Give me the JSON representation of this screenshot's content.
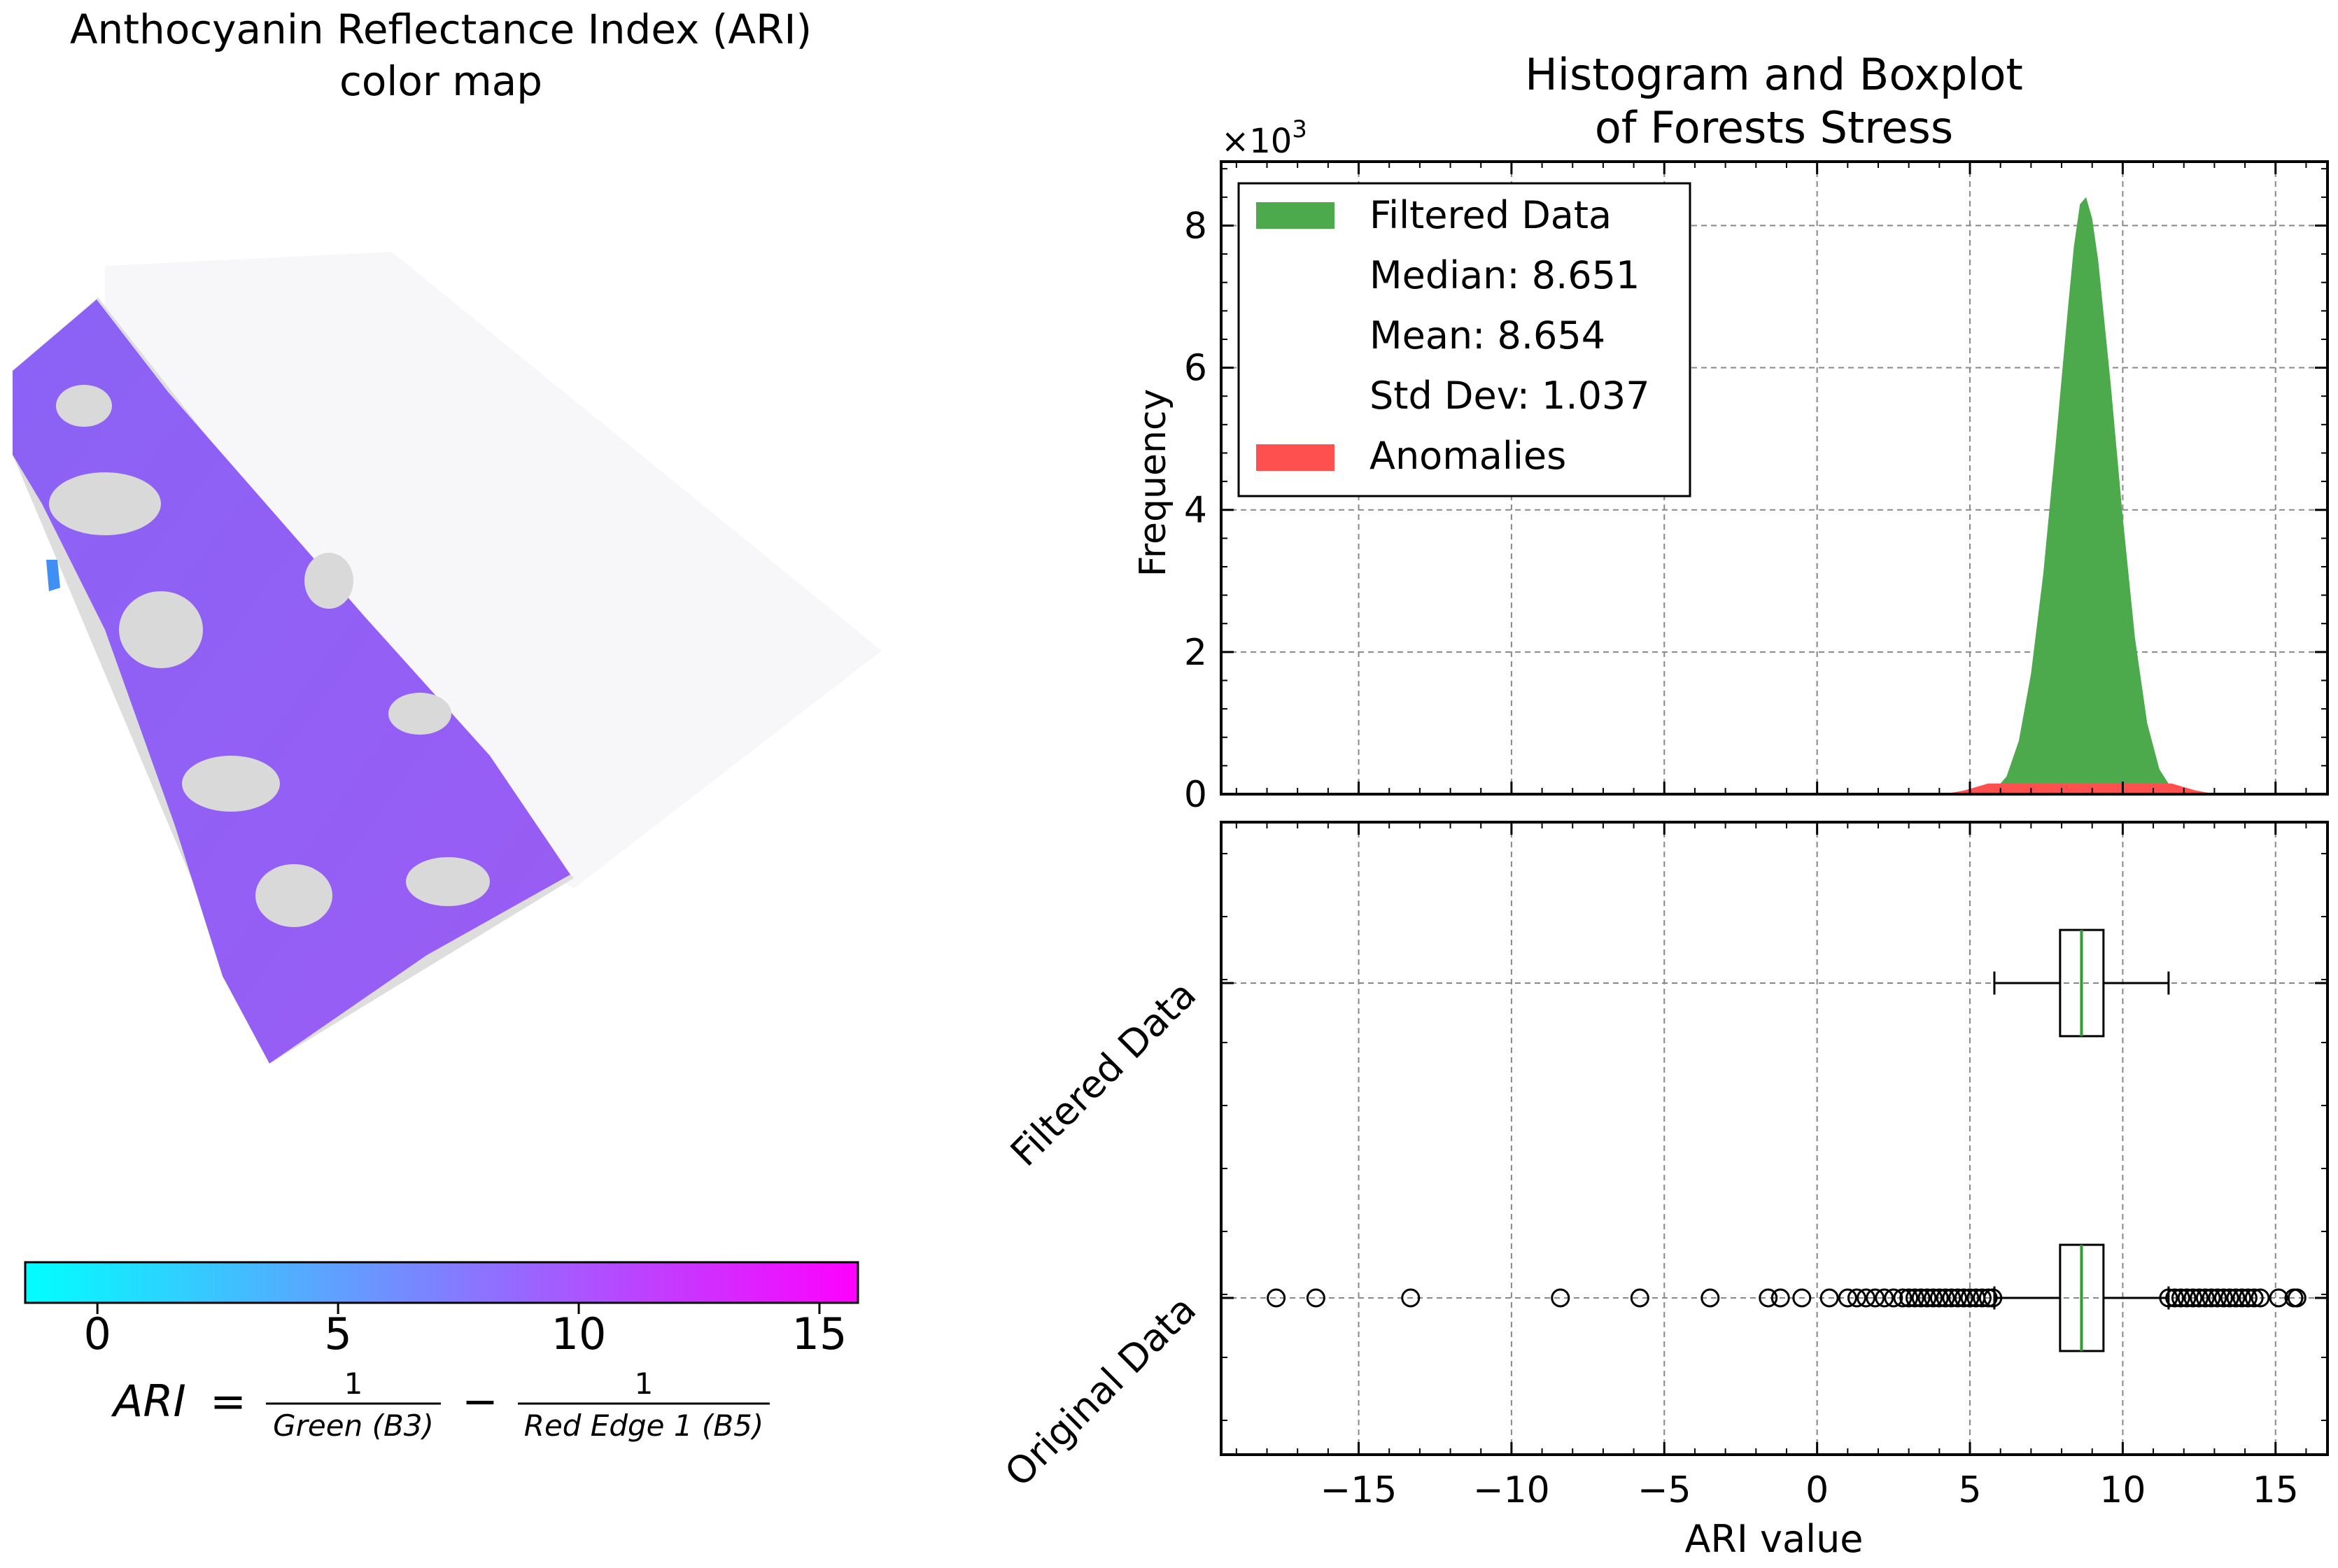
{
  "map_panel": {
    "title_line1": "Anthocyanin Reflectance Index (ARI)",
    "title_line2": "color map",
    "colorbar": {
      "ticks": [
        "0",
        "5",
        "10",
        "15"
      ],
      "tick_values": [
        0,
        5,
        10,
        15
      ],
      "range": [
        -1.5,
        15.8
      ],
      "colors": [
        "#00ffff",
        "#ff00ff"
      ]
    },
    "formula": {
      "lhs": "ARI",
      "eq": "=",
      "frac1_num": "1",
      "frac1_den": "Green (B3)",
      "minus": "−",
      "frac2_num": "1",
      "frac2_den": "Red Edge 1 (B5)"
    },
    "dominant_ari_value": 9.0
  },
  "chart_data": [
    {
      "type": "bar",
      "panel": "histogram",
      "title_line1": "Histogram and Boxplot",
      "title_line2": "of Forests Stress",
      "ylabel": "Frequency",
      "y_multiplier": "×10",
      "y_multiplier_exp": "3",
      "xlim": [
        -19.5,
        16.7
      ],
      "ylim": [
        0,
        8.9
      ],
      "y_units": "thousands",
      "yticks": [
        0,
        2,
        4,
        6,
        8
      ],
      "grid": true,
      "legend": {
        "placement": "top-left",
        "entries": [
          {
            "label": "Filtered Data",
            "color": "#4caa4c"
          },
          {
            "label": "Median: 8.651"
          },
          {
            "label": "Mean: 8.654"
          },
          {
            "label": "Std Dev: 1.037"
          },
          {
            "label": "Anomalies",
            "color": "#ff5050"
          }
        ]
      },
      "series": [
        {
          "name": "Filtered Data",
          "color": "#4caa4c",
          "x": [
            5.8,
            6.2,
            6.6,
            7.0,
            7.4,
            7.8,
            8.2,
            8.4,
            8.6,
            8.8,
            9.0,
            9.2,
            9.6,
            10.0,
            10.4,
            10.8,
            11.2,
            11.6
          ],
          "y": [
            0.05,
            0.25,
            0.75,
            1.7,
            3.1,
            4.9,
            6.8,
            7.7,
            8.3,
            8.4,
            8.1,
            7.5,
            5.8,
            3.9,
            2.2,
            1.0,
            0.35,
            0.08
          ]
        },
        {
          "name": "Anomalies",
          "color": "#ff5050",
          "x": [
            4.0,
            4.4,
            4.8,
            5.2,
            5.6,
            11.6,
            12.0,
            12.4,
            12.8
          ],
          "y": [
            0.01,
            0.02,
            0.05,
            0.1,
            0.15,
            0.15,
            0.1,
            0.05,
            0.02
          ]
        }
      ]
    },
    {
      "type": "boxplot",
      "panel": "boxplot",
      "xlabel": "ARI value",
      "xlim": [
        -19.5,
        16.7
      ],
      "xticks": [
        -15,
        -10,
        -5,
        0,
        5,
        10,
        15
      ],
      "xtick_labels": [
        "−15",
        "−10",
        "−5",
        "0",
        "5",
        "10",
        "15"
      ],
      "grid": true,
      "categories": [
        "Filtered Data",
        "Original Data"
      ],
      "series": [
        {
          "name": "Filtered Data",
          "whisker_low": 5.8,
          "q1": 7.95,
          "median": 8.651,
          "q3": 9.37,
          "whisker_high": 11.5,
          "outliers": []
        },
        {
          "name": "Original Data",
          "whisker_low": 5.8,
          "q1": 7.95,
          "median": 8.651,
          "q3": 9.37,
          "whisker_high": 11.5,
          "outliers": [
            -17.7,
            -16.4,
            -13.3,
            -8.4,
            -5.8,
            -3.5,
            -1.6,
            -1.2,
            -0.5,
            0.4,
            1.0,
            1.3,
            1.6,
            1.9,
            2.2,
            2.5,
            2.8,
            3.0,
            3.2,
            3.4,
            3.6,
            3.8,
            4.0,
            4.2,
            4.4,
            4.6,
            4.8,
            5.0,
            5.2,
            5.4,
            5.6,
            5.75,
            11.5,
            11.7,
            11.9,
            12.1,
            12.3,
            12.5,
            12.7,
            12.9,
            13.1,
            13.3,
            13.5,
            13.7,
            13.9,
            14.1,
            14.3,
            14.5,
            15.1,
            15.6,
            15.7
          ]
        }
      ],
      "median_color": "#2ca02c"
    }
  ]
}
